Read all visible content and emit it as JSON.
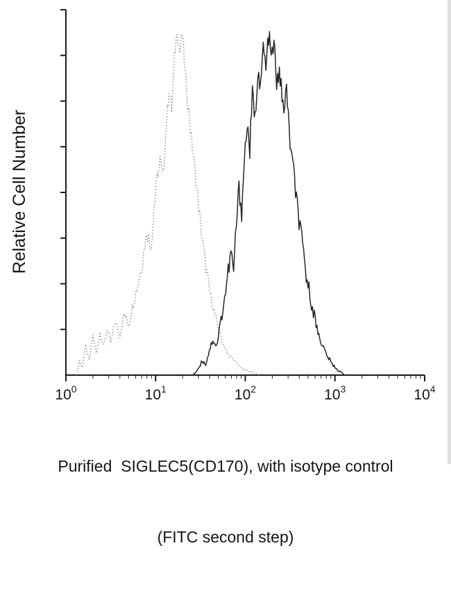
{
  "figure": {
    "ylabel": "Relative Cell Number",
    "caption_line1": "Purified  SIGLEC5(CD170), with isotype control",
    "caption_line2": "(FITC second step)"
  },
  "chart_data": {
    "type": "line",
    "subtype": "flow-cytometry-overlay-histogram",
    "title": "",
    "xlabel": "Purified SIGLEC5(CD170), with isotype control (FITC second step)",
    "ylabel": "Relative Cell Number",
    "x_scale": "log10",
    "x_range_exponents": [
      0,
      4
    ],
    "x_tick_exponents": [
      0,
      1,
      2,
      3,
      4
    ],
    "x_tick_labels": [
      "10^0",
      "10^1",
      "10^2",
      "10^3",
      "10^4"
    ],
    "y_axis": {
      "label": "Relative Cell Number",
      "tick_labels": "none",
      "tick_count": 8
    },
    "grid": false,
    "legend_position": "none",
    "axis_color": "#1a1a1a",
    "series": [
      {
        "name": "Isotype control (FITC second step)",
        "line_style": "dotted",
        "color": "#8f8f8f",
        "peak_log10_x": 1.24,
        "peak_relative_height": 0.97,
        "noise": 0.022,
        "points_log10x_relheight": [
          [
            0.12,
            0.0
          ],
          [
            0.15,
            0.04
          ],
          [
            0.18,
            0.02
          ],
          [
            0.22,
            0.08
          ],
          [
            0.26,
            0.04
          ],
          [
            0.3,
            0.11
          ],
          [
            0.34,
            0.06
          ],
          [
            0.38,
            0.12
          ],
          [
            0.42,
            0.08
          ],
          [
            0.46,
            0.13
          ],
          [
            0.5,
            0.09
          ],
          [
            0.55,
            0.15
          ],
          [
            0.6,
            0.11
          ],
          [
            0.65,
            0.17
          ],
          [
            0.7,
            0.14
          ],
          [
            0.75,
            0.2
          ],
          [
            0.8,
            0.25
          ],
          [
            0.85,
            0.31
          ],
          [
            0.9,
            0.4
          ],
          [
            0.95,
            0.36
          ],
          [
            1.0,
            0.52
          ],
          [
            1.05,
            0.6
          ],
          [
            1.08,
            0.55
          ],
          [
            1.12,
            0.7
          ],
          [
            1.15,
            0.8
          ],
          [
            1.18,
            0.74
          ],
          [
            1.21,
            0.88
          ],
          [
            1.24,
            0.97
          ],
          [
            1.27,
            0.9
          ],
          [
            1.3,
            0.95
          ],
          [
            1.33,
            0.84
          ],
          [
            1.36,
            0.76
          ],
          [
            1.4,
            0.66
          ],
          [
            1.44,
            0.57
          ],
          [
            1.48,
            0.47
          ],
          [
            1.52,
            0.38
          ],
          [
            1.56,
            0.3
          ],
          [
            1.6,
            0.24
          ],
          [
            1.65,
            0.18
          ],
          [
            1.7,
            0.13
          ],
          [
            1.75,
            0.09
          ],
          [
            1.8,
            0.06
          ],
          [
            1.88,
            0.04
          ],
          [
            1.95,
            0.02
          ],
          [
            2.05,
            0.01
          ],
          [
            2.15,
            0.0
          ]
        ]
      },
      {
        "name": "Purified SIGLEC5(CD170)",
        "line_style": "solid",
        "color": "#262626",
        "peak_log10_x": 2.26,
        "peak_relative_height": 0.95,
        "noise": 0.032,
        "points_log10x_relheight": [
          [
            1.42,
            0.0
          ],
          [
            1.48,
            0.02
          ],
          [
            1.52,
            0.04
          ],
          [
            1.56,
            0.03
          ],
          [
            1.6,
            0.07
          ],
          [
            1.64,
            0.1
          ],
          [
            1.68,
            0.08
          ],
          [
            1.72,
            0.14
          ],
          [
            1.76,
            0.2
          ],
          [
            1.8,
            0.27
          ],
          [
            1.84,
            0.34
          ],
          [
            1.87,
            0.29
          ],
          [
            1.9,
            0.42
          ],
          [
            1.93,
            0.52
          ],
          [
            1.96,
            0.46
          ],
          [
            1.99,
            0.6
          ],
          [
            2.02,
            0.7
          ],
          [
            2.05,
            0.63
          ],
          [
            2.08,
            0.78
          ],
          [
            2.11,
            0.71
          ],
          [
            2.14,
            0.86
          ],
          [
            2.17,
            0.79
          ],
          [
            2.2,
            0.92
          ],
          [
            2.23,
            0.85
          ],
          [
            2.26,
            0.95
          ],
          [
            2.29,
            0.88
          ],
          [
            2.32,
            0.93
          ],
          [
            2.35,
            0.8
          ],
          [
            2.38,
            0.86
          ],
          [
            2.42,
            0.74
          ],
          [
            2.46,
            0.79
          ],
          [
            2.5,
            0.65
          ],
          [
            2.54,
            0.56
          ],
          [
            2.58,
            0.47
          ],
          [
            2.62,
            0.39
          ],
          [
            2.66,
            0.31
          ],
          [
            2.7,
            0.25
          ],
          [
            2.75,
            0.19
          ],
          [
            2.8,
            0.13
          ],
          [
            2.85,
            0.09
          ],
          [
            2.9,
            0.06
          ],
          [
            2.97,
            0.03
          ],
          [
            3.05,
            0.01
          ],
          [
            3.12,
            0.0
          ]
        ]
      }
    ]
  }
}
